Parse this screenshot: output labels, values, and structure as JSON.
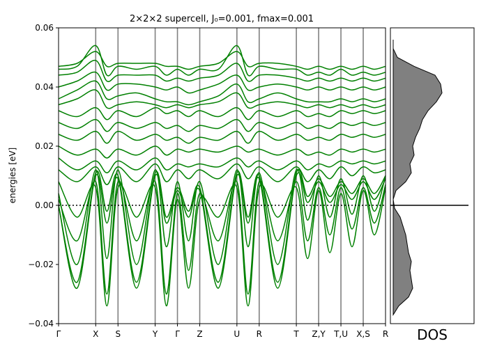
{
  "chart_data": [
    {
      "type": "line",
      "title": "2×2×2 supercell, J₀=0.001, fmax=0.001",
      "xlabel": "",
      "ylabel": "energies [eV]",
      "ylim": [
        -0.04,
        0.06
      ],
      "yticks": [
        -0.04,
        -0.02,
        0.0,
        0.02,
        0.04,
        0.06
      ],
      "ytick_labels": [
        "−0.04",
        "−0.02",
        "0.00",
        "0.02",
        "0.04",
        "0.06"
      ],
      "kpoints": [
        {
          "label": "Γ",
          "x": 0.0
        },
        {
          "label": "X",
          "x": 0.5
        },
        {
          "label": "S",
          "x": 0.8
        },
        {
          "label": "Y",
          "x": 1.3
        },
        {
          "label": "Γ",
          "x": 1.6
        },
        {
          "label": "Z",
          "x": 1.9
        },
        {
          "label": "U",
          "x": 2.4
        },
        {
          "label": "R",
          "x": 2.7
        },
        {
          "label": "T",
          "x": 3.2
        },
        {
          "label": "Z,Y",
          "x": 3.5
        },
        {
          "label": "T,U",
          "x": 3.8
        },
        {
          "label": "X,S",
          "x": 4.1
        },
        {
          "label": "R",
          "x": 4.4
        }
      ],
      "xlim": [
        0.0,
        4.4
      ],
      "fermi_level": 0.0,
      "line_color": "#008000",
      "grid": false,
      "bands": [
        {
          "x": [
            0.0,
            0.25,
            0.5,
            0.65,
            0.8,
            1.05,
            1.3,
            1.45,
            1.6,
            1.75,
            1.9,
            2.15,
            2.4,
            2.55,
            2.7,
            2.95,
            3.2,
            3.35,
            3.5,
            3.65,
            3.8,
            3.95,
            4.1,
            4.25,
            4.4
          ],
          "y": [
            0.0,
            -0.026,
            0.011,
            -0.002,
            0.01,
            -0.026,
            0.011,
            -0.004,
            0.006,
            -0.002,
            0.006,
            -0.026,
            0.011,
            -0.004,
            0.01,
            -0.026,
            0.011,
            0.003,
            0.009,
            0.003,
            0.008,
            0.004,
            0.009,
            0.004,
            0.01
          ]
        },
        {
          "x": [
            0.0,
            0.25,
            0.5,
            0.65,
            0.8,
            1.05,
            1.3,
            1.45,
            1.6,
            1.75,
            1.9,
            2.15,
            2.4,
            2.55,
            2.7,
            2.95,
            3.2,
            3.35,
            3.5,
            3.65,
            3.8,
            3.95,
            4.1,
            4.25,
            4.4
          ],
          "y": [
            0.0,
            -0.028,
            0.01,
            -0.006,
            0.009,
            -0.028,
            0.01,
            -0.006,
            0.005,
            -0.004,
            0.005,
            -0.028,
            0.01,
            -0.006,
            0.009,
            -0.028,
            0.01,
            0.001,
            0.008,
            0.001,
            0.007,
            0.002,
            0.008,
            0.002,
            0.009
          ]
        },
        {
          "x": [
            0.0,
            0.25,
            0.5,
            0.65,
            0.8,
            1.05,
            1.3,
            1.45,
            1.6,
            1.75,
            1.9,
            2.15,
            2.4,
            2.55,
            2.7,
            2.95,
            3.2,
            3.35,
            3.5,
            3.65,
            3.8,
            3.95,
            4.1,
            4.25,
            4.4
          ],
          "y": [
            0.004,
            -0.02,
            0.012,
            -0.018,
            0.012,
            -0.02,
            0.012,
            -0.014,
            0.008,
            -0.012,
            0.008,
            -0.02,
            0.012,
            -0.014,
            0.011,
            -0.02,
            0.012,
            -0.005,
            0.01,
            -0.004,
            0.009,
            -0.003,
            0.01,
            -0.002,
            0.01
          ]
        },
        {
          "x": [
            0.0,
            0.25,
            0.5,
            0.65,
            0.8,
            1.05,
            1.3,
            1.45,
            1.6,
            1.75,
            1.9,
            2.15,
            2.4,
            2.55,
            2.7,
            2.95,
            3.2,
            3.35,
            3.5,
            3.65,
            3.8,
            3.95,
            4.1,
            4.25,
            4.4
          ],
          "y": [
            0.002,
            -0.012,
            0.008,
            -0.03,
            0.008,
            -0.012,
            0.008,
            -0.03,
            0.004,
            -0.022,
            0.004,
            -0.012,
            0.008,
            -0.03,
            0.008,
            -0.012,
            0.008,
            -0.012,
            0.006,
            -0.01,
            0.006,
            -0.008,
            0.006,
            -0.006,
            0.007
          ]
        },
        {
          "x": [
            0.0,
            0.25,
            0.5,
            0.65,
            0.8,
            1.05,
            1.3,
            1.45,
            1.6,
            1.75,
            1.9,
            2.15,
            2.4,
            2.55,
            2.7,
            2.95,
            3.2,
            3.35,
            3.5,
            3.65,
            3.8,
            3.95,
            4.1,
            4.25,
            4.4
          ],
          "y": [
            0.008,
            -0.004,
            0.006,
            -0.034,
            0.006,
            -0.004,
            0.006,
            -0.034,
            0.002,
            -0.028,
            0.002,
            -0.004,
            0.006,
            -0.034,
            0.006,
            -0.004,
            0.006,
            -0.018,
            0.005,
            -0.016,
            0.004,
            -0.014,
            0.005,
            -0.01,
            0.006
          ]
        },
        {
          "x": [
            0.0,
            0.25,
            0.5,
            0.65,
            0.8,
            1.05,
            1.3,
            1.45,
            1.6,
            1.75,
            1.9,
            2.15,
            2.4,
            2.55,
            2.7,
            2.95,
            3.2,
            3.35,
            3.5,
            3.65,
            3.8,
            3.95,
            4.1,
            4.25,
            4.4
          ],
          "y": [
            0.012,
            0.008,
            0.013,
            0.007,
            0.013,
            0.008,
            0.014,
            0.008,
            0.012,
            0.009,
            0.012,
            0.009,
            0.014,
            0.009,
            0.013,
            0.008,
            0.013,
            0.008,
            0.012,
            0.009,
            0.013,
            0.01,
            0.013,
            0.011,
            0.012
          ]
        },
        {
          "x": [
            0.0,
            0.25,
            0.5,
            0.65,
            0.8,
            1.05,
            1.3,
            1.45,
            1.6,
            1.75,
            1.9,
            2.15,
            2.4,
            2.55,
            2.7,
            2.95,
            3.2,
            3.35,
            3.5,
            3.65,
            3.8,
            3.95,
            4.1,
            4.25,
            4.4
          ],
          "y": [
            0.016,
            0.012,
            0.015,
            0.011,
            0.015,
            0.012,
            0.016,
            0.012,
            0.014,
            0.013,
            0.014,
            0.013,
            0.016,
            0.013,
            0.015,
            0.012,
            0.015,
            0.012,
            0.014,
            0.013,
            0.015,
            0.014,
            0.015,
            0.014,
            0.015
          ]
        },
        {
          "x": [
            0.0,
            0.25,
            0.5,
            0.65,
            0.8,
            1.05,
            1.3,
            1.45,
            1.6,
            1.75,
            1.9,
            2.15,
            2.4,
            2.55,
            2.7,
            2.95,
            3.2,
            3.35,
            3.5,
            3.65,
            3.8,
            3.95,
            4.1,
            4.25,
            4.4
          ],
          "y": [
            0.02,
            0.017,
            0.019,
            0.016,
            0.019,
            0.017,
            0.02,
            0.017,
            0.019,
            0.018,
            0.019,
            0.018,
            0.02,
            0.018,
            0.019,
            0.017,
            0.019,
            0.017,
            0.018,
            0.017,
            0.019,
            0.018,
            0.019,
            0.018,
            0.019
          ]
        },
        {
          "x": [
            0.0,
            0.25,
            0.5,
            0.65,
            0.8,
            1.05,
            1.3,
            1.45,
            1.6,
            1.75,
            1.9,
            2.15,
            2.4,
            2.55,
            2.7,
            2.95,
            3.2,
            3.35,
            3.5,
            3.65,
            3.8,
            3.95,
            4.1,
            4.25,
            4.4
          ],
          "y": [
            0.024,
            0.022,
            0.025,
            0.021,
            0.025,
            0.022,
            0.024,
            0.022,
            0.023,
            0.021,
            0.023,
            0.022,
            0.025,
            0.021,
            0.025,
            0.022,
            0.024,
            0.022,
            0.023,
            0.022,
            0.024,
            0.023,
            0.024,
            0.023,
            0.024
          ]
        },
        {
          "x": [
            0.0,
            0.25,
            0.5,
            0.65,
            0.8,
            1.05,
            1.3,
            1.45,
            1.6,
            1.75,
            1.9,
            2.15,
            2.4,
            2.55,
            2.7,
            2.95,
            3.2,
            3.35,
            3.5,
            3.65,
            3.8,
            3.95,
            4.1,
            4.25,
            4.4
          ],
          "y": [
            0.028,
            0.026,
            0.029,
            0.025,
            0.028,
            0.026,
            0.028,
            0.026,
            0.027,
            0.025,
            0.027,
            0.026,
            0.029,
            0.025,
            0.028,
            0.026,
            0.028,
            0.026,
            0.027,
            0.026,
            0.028,
            0.027,
            0.028,
            0.027,
            0.028
          ]
        },
        {
          "x": [
            0.0,
            0.25,
            0.5,
            0.65,
            0.8,
            1.05,
            1.3,
            1.45,
            1.6,
            1.75,
            1.9,
            2.15,
            2.4,
            2.55,
            2.7,
            2.95,
            3.2,
            3.35,
            3.5,
            3.65,
            3.8,
            3.95,
            4.1,
            4.25,
            4.4
          ],
          "y": [
            0.032,
            0.03,
            0.033,
            0.029,
            0.032,
            0.03,
            0.033,
            0.031,
            0.032,
            0.03,
            0.032,
            0.03,
            0.033,
            0.029,
            0.032,
            0.03,
            0.032,
            0.03,
            0.031,
            0.03,
            0.032,
            0.031,
            0.032,
            0.031,
            0.032
          ]
        },
        {
          "x": [
            0.0,
            0.25,
            0.5,
            0.65,
            0.8,
            1.05,
            1.3,
            1.45,
            1.6,
            1.75,
            1.9,
            2.15,
            2.4,
            2.55,
            2.7,
            2.95,
            3.2,
            3.35,
            3.5,
            3.65,
            3.8,
            3.95,
            4.1,
            4.25,
            4.4
          ],
          "y": [
            0.034,
            0.036,
            0.039,
            0.033,
            0.034,
            0.035,
            0.034,
            0.033,
            0.034,
            0.033,
            0.034,
            0.035,
            0.038,
            0.033,
            0.034,
            0.035,
            0.034,
            0.033,
            0.034,
            0.033,
            0.034,
            0.033,
            0.034,
            0.033,
            0.034
          ]
        },
        {
          "x": [
            0.0,
            0.25,
            0.5,
            0.65,
            0.8,
            1.05,
            1.3,
            1.45,
            1.6,
            1.75,
            1.9,
            2.15,
            2.4,
            2.55,
            2.7,
            2.95,
            3.2,
            3.35,
            3.5,
            3.65,
            3.8,
            3.95,
            4.1,
            4.25,
            4.4
          ],
          "y": [
            0.036,
            0.039,
            0.042,
            0.036,
            0.037,
            0.038,
            0.036,
            0.035,
            0.035,
            0.034,
            0.035,
            0.037,
            0.041,
            0.035,
            0.036,
            0.038,
            0.036,
            0.035,
            0.035,
            0.035,
            0.036,
            0.035,
            0.036,
            0.035,
            0.036
          ]
        },
        {
          "x": [
            0.0,
            0.25,
            0.5,
            0.65,
            0.8,
            1.05,
            1.3,
            1.45,
            1.6,
            1.75,
            1.9,
            2.15,
            2.4,
            2.55,
            2.7,
            2.95,
            3.2,
            3.35,
            3.5,
            3.65,
            3.8,
            3.95,
            4.1,
            4.25,
            4.4
          ],
          "y": [
            0.04,
            0.042,
            0.045,
            0.039,
            0.041,
            0.041,
            0.04,
            0.039,
            0.04,
            0.038,
            0.039,
            0.041,
            0.044,
            0.039,
            0.04,
            0.041,
            0.04,
            0.039,
            0.04,
            0.039,
            0.04,
            0.039,
            0.04,
            0.039,
            0.04
          ]
        },
        {
          "x": [
            0.0,
            0.25,
            0.5,
            0.65,
            0.8,
            1.05,
            1.3,
            1.45,
            1.6,
            1.75,
            1.9,
            2.15,
            2.4,
            2.55,
            2.7,
            2.95,
            3.2,
            3.35,
            3.5,
            3.65,
            3.8,
            3.95,
            4.1,
            4.25,
            4.4
          ],
          "y": [
            0.044,
            0.045,
            0.049,
            0.042,
            0.044,
            0.044,
            0.044,
            0.042,
            0.043,
            0.042,
            0.043,
            0.044,
            0.048,
            0.042,
            0.044,
            0.044,
            0.043,
            0.042,
            0.043,
            0.042,
            0.043,
            0.042,
            0.043,
            0.042,
            0.043
          ]
        },
        {
          "x": [
            0.0,
            0.25,
            0.5,
            0.65,
            0.8,
            1.05,
            1.3,
            1.45,
            1.6,
            1.75,
            1.9,
            2.15,
            2.4,
            2.55,
            2.7,
            2.95,
            3.2,
            3.35,
            3.5,
            3.65,
            3.8,
            3.95,
            4.1,
            4.25,
            4.4
          ],
          "y": [
            0.046,
            0.047,
            0.054,
            0.044,
            0.047,
            0.046,
            0.047,
            0.044,
            0.046,
            0.044,
            0.046,
            0.046,
            0.054,
            0.044,
            0.047,
            0.046,
            0.046,
            0.044,
            0.045,
            0.044,
            0.046,
            0.044,
            0.045,
            0.044,
            0.045
          ]
        },
        {
          "x": [
            0.0,
            0.25,
            0.5,
            0.65,
            0.8,
            1.05,
            1.3,
            1.45,
            1.6,
            1.75,
            1.9,
            2.15,
            2.4,
            2.55,
            2.7,
            2.95,
            3.2,
            3.35,
            3.5,
            3.65,
            3.8,
            3.95,
            4.1,
            4.25,
            4.4
          ],
          "y": [
            0.047,
            0.048,
            0.052,
            0.047,
            0.048,
            0.048,
            0.048,
            0.047,
            0.047,
            0.046,
            0.047,
            0.048,
            0.052,
            0.047,
            0.048,
            0.048,
            0.047,
            0.046,
            0.047,
            0.046,
            0.047,
            0.046,
            0.047,
            0.046,
            0.047
          ]
        }
      ]
    },
    {
      "type": "area",
      "title": "",
      "xlabel": "DOS",
      "ylabel": "",
      "ylim": [
        -0.04,
        0.06
      ],
      "fill_color": "#808080",
      "fermi_level": 0.0,
      "energies": [
        -0.037,
        -0.034,
        -0.031,
        -0.028,
        -0.025,
        -0.022,
        -0.019,
        -0.016,
        -0.013,
        -0.01,
        -0.007,
        -0.004,
        -0.001,
        0.002,
        0.005,
        0.008,
        0.011,
        0.014,
        0.017,
        0.02,
        0.023,
        0.026,
        0.029,
        0.032,
        0.035,
        0.038,
        0.041,
        0.044,
        0.047,
        0.05,
        0.053,
        0.056
      ],
      "dos": [
        0.0,
        0.08,
        0.22,
        0.28,
        0.26,
        0.24,
        0.26,
        0.22,
        0.2,
        0.18,
        0.14,
        0.1,
        0.02,
        0.0,
        0.04,
        0.18,
        0.26,
        0.24,
        0.3,
        0.28,
        0.32,
        0.38,
        0.42,
        0.5,
        0.62,
        0.7,
        0.68,
        0.6,
        0.3,
        0.06,
        0.0,
        0.0
      ]
    }
  ]
}
